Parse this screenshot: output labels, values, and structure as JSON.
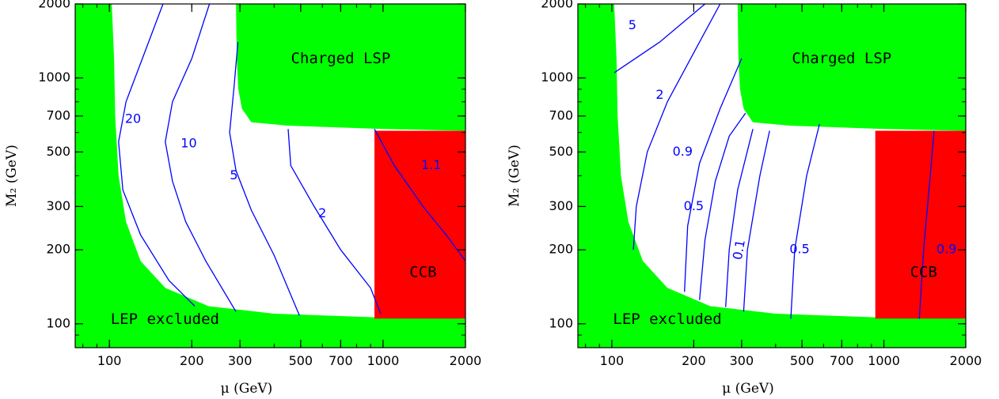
{
  "chart_data": [
    {
      "type": "contour",
      "xlabel": "μ (GeV)",
      "ylabel": "M₂ (GeV)",
      "x_scale": "log",
      "y_scale": "log",
      "xlim": [
        75,
        2000
      ],
      "ylim": [
        80,
        2000
      ],
      "x_ticks": [
        100,
        200,
        300,
        500,
        700,
        1000,
        2000
      ],
      "y_ticks": [
        100,
        200,
        300,
        500,
        700,
        1000,
        2000
      ],
      "regions": [
        {
          "label": "Charged LSP",
          "color": "#00ff00"
        },
        {
          "label": "LEP excluded",
          "color": "#00ff00"
        },
        {
          "label": "CCB",
          "color": "#ff0000",
          "mu_range": [
            930,
            2000
          ],
          "m2_range": [
            105,
            610
          ]
        }
      ],
      "contours": [
        {
          "label": "20",
          "label_at": [
            122,
            680
          ],
          "points": [
            [
              157,
              2000
            ],
            [
              132,
              1200
            ],
            [
              115,
              800
            ],
            [
              108,
              550
            ],
            [
              112,
              350
            ],
            [
              130,
              230
            ],
            [
              165,
              150
            ],
            [
              205,
              118
            ]
          ]
        },
        {
          "label": "10",
          "label_at": [
            195,
            540
          ],
          "points": [
            [
              232,
              2000
            ],
            [
              200,
              1200
            ],
            [
              170,
              800
            ],
            [
              160,
              550
            ],
            [
              170,
              380
            ],
            [
              190,
              260
            ],
            [
              225,
              180
            ],
            [
              290,
              112
            ]
          ]
        },
        {
          "label": "5",
          "label_at": [
            285,
            400
          ],
          "points": [
            [
              295,
              1400
            ],
            [
              285,
              900
            ],
            [
              275,
              600
            ],
            [
              290,
              420
            ],
            [
              330,
              290
            ],
            [
              400,
              190
            ],
            [
              495,
              108
            ]
          ]
        },
        {
          "label": "2",
          "label_at": [
            600,
            280
          ],
          "points": [
            [
              450,
              620
            ],
            [
              460,
              440
            ],
            [
              560,
              300
            ],
            [
              700,
              200
            ],
            [
              900,
              140
            ],
            [
              980,
              110
            ]
          ]
        },
        {
          "label": "1.1",
          "label_at": [
            1500,
            440
          ],
          "points": [
            [
              930,
              620
            ],
            [
              1100,
              440
            ],
            [
              1400,
              300
            ],
            [
              1700,
              230
            ],
            [
              2000,
              180
            ]
          ]
        }
      ]
    },
    {
      "type": "contour",
      "xlabel": "μ (GeV)",
      "ylabel": "M₂ (GeV)",
      "x_scale": "log",
      "y_scale": "log",
      "xlim": [
        75,
        2000
      ],
      "ylim": [
        80,
        2000
      ],
      "x_ticks": [
        100,
        200,
        300,
        500,
        700,
        1000,
        2000
      ],
      "y_ticks": [
        100,
        200,
        300,
        500,
        700,
        1000,
        2000
      ],
      "regions": [
        {
          "label": "Charged LSP",
          "color": "#00ff00"
        },
        {
          "label": "LEP excluded",
          "color": "#00ff00"
        },
        {
          "label": "CCB",
          "color": "#ff0000",
          "mu_range": [
            930,
            2000
          ],
          "m2_range": [
            105,
            610
          ]
        }
      ],
      "contours": [
        {
          "label": "5",
          "label_at": [
            119,
            1630
          ],
          "points": [
            [
              102,
              1050
            ],
            [
              150,
              1400
            ],
            [
              220,
              2000
            ]
          ]
        },
        {
          "label": "2",
          "label_at": [
            150,
            850
          ],
          "points": [
            [
              120,
              200
            ],
            [
              123,
              300
            ],
            [
              135,
              500
            ],
            [
              160,
              800
            ],
            [
              210,
              1400
            ],
            [
              250,
              2000
            ]
          ]
        },
        {
          "label": "0.9",
          "label_at": [
            182,
            500
          ],
          "points": [
            [
              185,
              135
            ],
            [
              190,
              250
            ],
            [
              210,
              450
            ],
            [
              250,
              750
            ],
            [
              300,
              1200
            ]
          ]
        },
        {
          "label": "0.5",
          "label_at": [
            200,
            300
          ],
          "points": [
            [
              210,
              125
            ],
            [
              220,
              220
            ],
            [
              240,
              380
            ],
            [
              270,
              580
            ],
            [
              310,
              720
            ]
          ]
        },
        {
          "label": "0.1",
          "label_at": [
            295,
            200
          ],
          "points": [
            [
              262,
              117
            ],
            [
              270,
              200
            ],
            [
              290,
              350
            ],
            [
              330,
              620
            ]
          ]
        },
        {
          "label": "",
          "label_at": null,
          "points": [
            [
              305,
              112
            ],
            [
              315,
              200
            ],
            [
              350,
              400
            ],
            [
              380,
              610
            ]
          ]
        },
        {
          "label": "0.5",
          "label_at": [
            490,
            200
          ],
          "points": [
            [
              455,
              105
            ],
            [
              470,
              200
            ],
            [
              520,
              400
            ],
            [
              580,
              650
            ]
          ]
        },
        {
          "label": "0.9",
          "label_at": [
            1700,
            200
          ],
          "points": [
            [
              1350,
              105
            ],
            [
              1400,
              200
            ],
            [
              1480,
              400
            ],
            [
              1530,
              610
            ]
          ]
        }
      ]
    }
  ]
}
